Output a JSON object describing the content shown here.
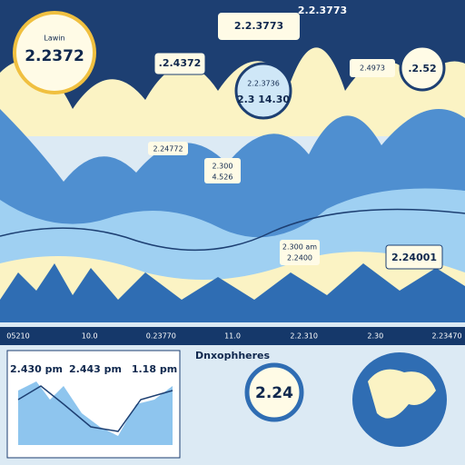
{
  "badges": {
    "main": {
      "caption": "Lawin",
      "value": "2.2372"
    },
    "top": "2.2.3773",
    "top_right": "2.2.3773",
    "left": ".2.4372",
    "center": [
      "2.2.3736",
      "2.3 14.30"
    ],
    "right": "2.4973",
    "far_right": ".2.52",
    "mid_left": "2.24772",
    "mid": [
      "2.300",
      "4.526"
    ],
    "lower": [
      "2.300 am",
      "2.2400"
    ],
    "lower_right": "2.24001"
  },
  "ticker": [
    "05210",
    "10.0",
    "0.23770",
    "11.0",
    "2.2.310",
    "2.30",
    "2.23470"
  ],
  "panels": {
    "times": [
      "2.430 pm",
      "2.443 pm",
      "1.18 pm"
    ],
    "heading": "Dnxophheres",
    "gauge": "2.24"
  }
}
